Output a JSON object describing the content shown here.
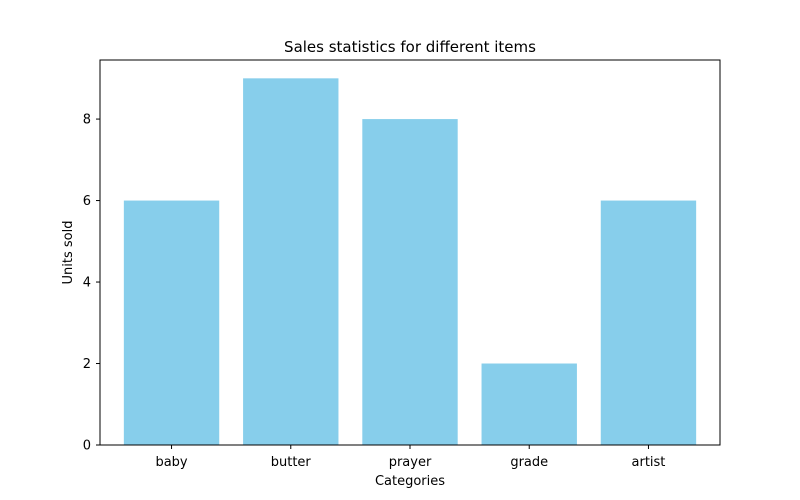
{
  "chart_data": {
    "type": "bar",
    "title": "Sales statistics for different items",
    "xlabel": "Categories",
    "ylabel": "Units sold",
    "categories": [
      "baby",
      "butter",
      "prayer",
      "grade",
      "artist"
    ],
    "values": [
      6,
      9,
      8,
      2,
      6
    ],
    "ylim": [
      0,
      9.45
    ],
    "yticks": [
      0,
      2,
      4,
      6,
      8
    ],
    "bar_color": "#87CEEB",
    "grid": false,
    "legend": "none"
  }
}
